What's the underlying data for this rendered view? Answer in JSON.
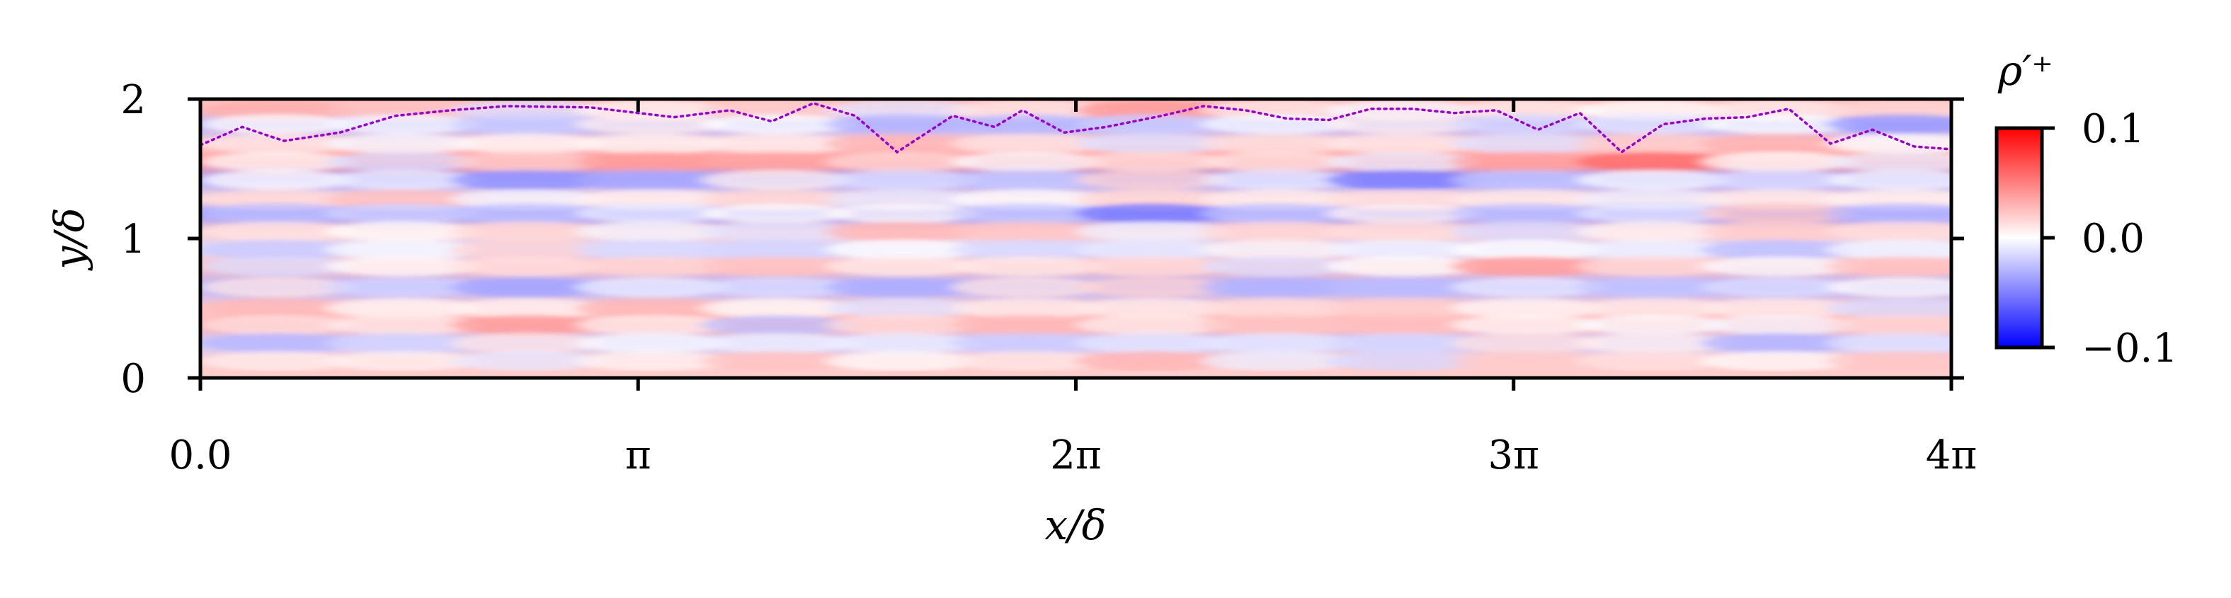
{
  "chart_data": {
    "type": "heatmap",
    "title": "",
    "xlabel": "x/δ",
    "ylabel": "y/δ",
    "xlim": [
      0,
      12.566370614359172
    ],
    "ylim": [
      0,
      2
    ],
    "xticks": [
      {
        "value": 0,
        "label": "0.0"
      },
      {
        "value": 3.141592653589793,
        "label": "π"
      },
      {
        "value": 6.283185307179586,
        "label": "2π"
      },
      {
        "value": 9.42477796076938,
        "label": "3π"
      },
      {
        "value": 12.566370614359172,
        "label": "4π"
      }
    ],
    "yticks": [
      {
        "value": 0,
        "label": "0"
      },
      {
        "value": 1,
        "label": "1"
      },
      {
        "value": 2,
        "label": "2"
      }
    ],
    "colormap": "bwr",
    "colorbar": {
      "title": "ρ′⁺",
      "min": -0.1,
      "max": 0.1,
      "ticks": [
        {
          "value": 0.1,
          "label": "0.1"
        },
        {
          "value": 0.0,
          "label": "0.0"
        },
        {
          "value": -0.1,
          "label": "−0.1"
        }
      ],
      "color_low": "#0000ff",
      "color_mid": "#ffffff",
      "color_high": "#ff0000"
    },
    "field_bands": [
      {
        "y": 1.92,
        "value": 0.025
      },
      {
        "y": 1.82,
        "value": -0.03
      },
      {
        "y": 1.68,
        "value": 0.02
      },
      {
        "y": 1.55,
        "value": 0.04
      },
      {
        "y": 1.42,
        "value": -0.035
      },
      {
        "y": 1.28,
        "value": 0.015
      },
      {
        "y": 1.18,
        "value": -0.04
      },
      {
        "y": 1.05,
        "value": 0.02
      },
      {
        "y": 0.92,
        "value": -0.015
      },
      {
        "y": 0.8,
        "value": 0.025
      },
      {
        "y": 0.65,
        "value": -0.03
      },
      {
        "y": 0.5,
        "value": 0.02
      },
      {
        "y": 0.38,
        "value": 0.03
      },
      {
        "y": 0.25,
        "value": -0.02
      },
      {
        "y": 0.12,
        "value": 0.02
      }
    ],
    "series": [
      {
        "type": "dotted-line",
        "color": "#9900cc",
        "x": [
          0.0,
          0.3,
          0.6,
          1.0,
          1.4,
          1.8,
          2.2,
          2.8,
          3.4,
          3.8,
          4.1,
          4.4,
          4.7,
          5.0,
          5.4,
          5.7,
          5.9,
          6.2,
          6.5,
          6.9,
          7.2,
          7.5,
          7.8,
          8.1,
          8.4,
          8.7,
          9.0,
          9.3,
          9.6,
          9.9,
          10.2,
          10.5,
          10.8,
          11.1,
          11.4,
          11.7,
          12.0,
          12.3,
          12.566
        ],
        "y": [
          1.67,
          1.8,
          1.7,
          1.76,
          1.88,
          1.92,
          1.95,
          1.94,
          1.87,
          1.92,
          1.84,
          1.97,
          1.88,
          1.62,
          1.88,
          1.8,
          1.92,
          1.76,
          1.8,
          1.88,
          1.95,
          1.92,
          1.86,
          1.85,
          1.93,
          1.93,
          1.9,
          1.92,
          1.78,
          1.9,
          1.62,
          1.82,
          1.86,
          1.87,
          1.93,
          1.68,
          1.78,
          1.66,
          1.64
        ]
      }
    ],
    "grid": false
  }
}
